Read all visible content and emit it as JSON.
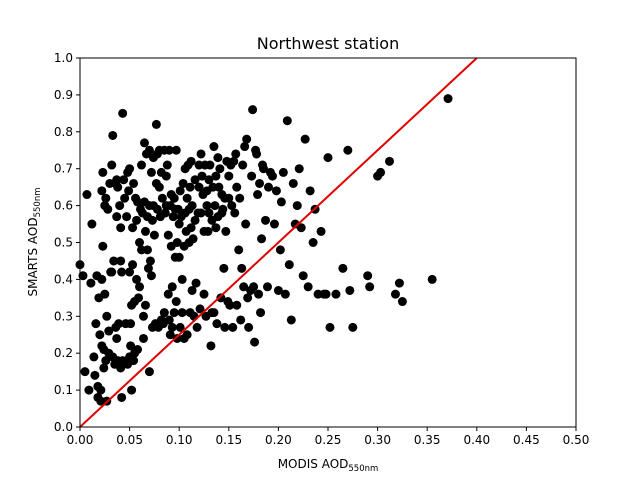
{
  "chart_data": {
    "type": "scatter",
    "title": "Northwest station",
    "xlabel": {
      "main": "MODIS AOD",
      "sub": "550nm"
    },
    "ylabel": {
      "main": "SMARTS AOD",
      "sub": "550nm"
    },
    "xlim": [
      0.0,
      0.5
    ],
    "ylim": [
      0.0,
      1.0
    ],
    "x_ticks": [
      "0.00",
      "0.05",
      "0.10",
      "0.15",
      "0.20",
      "0.25",
      "0.30",
      "0.35",
      "0.40",
      "0.45",
      "0.50"
    ],
    "y_ticks": [
      "0.0",
      "0.1",
      "0.2",
      "0.3",
      "0.4",
      "0.5",
      "0.6",
      "0.7",
      "0.8",
      "0.9",
      "1.0"
    ],
    "grid": false,
    "marker_color": "#000000",
    "reference_line": {
      "color": "#e00000",
      "slope": 2.5,
      "intercept": 0.0
    },
    "points": [
      [
        0.0,
        0.44
      ],
      [
        0.003,
        0.41
      ],
      [
        0.005,
        0.15
      ],
      [
        0.007,
        0.63
      ],
      [
        0.009,
        0.1
      ],
      [
        0.011,
        0.39
      ],
      [
        0.012,
        0.55
      ],
      [
        0.014,
        0.19
      ],
      [
        0.015,
        0.14
      ],
      [
        0.016,
        0.28
      ],
      [
        0.017,
        0.41
      ],
      [
        0.018,
        0.11
      ],
      [
        0.018,
        0.08
      ],
      [
        0.019,
        0.35
      ],
      [
        0.02,
        0.25
      ],
      [
        0.021,
        0.1
      ],
      [
        0.021,
        0.07
      ],
      [
        0.022,
        0.64
      ],
      [
        0.022,
        0.4
      ],
      [
        0.022,
        0.22
      ],
      [
        0.023,
        0.69
      ],
      [
        0.023,
        0.49
      ],
      [
        0.024,
        0.21
      ],
      [
        0.024,
        0.16
      ],
      [
        0.025,
        0.6
      ],
      [
        0.025,
        0.36
      ],
      [
        0.026,
        0.62
      ],
      [
        0.026,
        0.18
      ],
      [
        0.027,
        0.07
      ],
      [
        0.027,
        0.3
      ],
      [
        0.028,
        0.59
      ],
      [
        0.029,
        0.2
      ],
      [
        0.029,
        0.26
      ],
      [
        0.03,
        0.66
      ],
      [
        0.031,
        0.42
      ],
      [
        0.032,
        0.71
      ],
      [
        0.032,
        0.42
      ],
      [
        0.033,
        0.19
      ],
      [
        0.033,
        0.79
      ],
      [
        0.034,
        0.45
      ],
      [
        0.035,
        0.17
      ],
      [
        0.036,
        0.27
      ],
      [
        0.036,
        0.66
      ],
      [
        0.037,
        0.67
      ],
      [
        0.037,
        0.57
      ],
      [
        0.037,
        0.24
      ],
      [
        0.038,
        0.65
      ],
      [
        0.038,
        0.18
      ],
      [
        0.039,
        0.28
      ],
      [
        0.04,
        0.6
      ],
      [
        0.041,
        0.54
      ],
      [
        0.041,
        0.16
      ],
      [
        0.041,
        0.45
      ],
      [
        0.042,
        0.08
      ],
      [
        0.042,
        0.42
      ],
      [
        0.043,
        0.85
      ],
      [
        0.043,
        0.18
      ],
      [
        0.044,
        0.67
      ],
      [
        0.045,
        0.62
      ],
      [
        0.046,
        0.28
      ],
      [
        0.047,
        0.57
      ],
      [
        0.048,
        0.69
      ],
      [
        0.048,
        0.17
      ],
      [
        0.049,
        0.64
      ],
      [
        0.05,
        0.7
      ],
      [
        0.05,
        0.42
      ],
      [
        0.05,
        0.19
      ],
      [
        0.051,
        0.22
      ],
      [
        0.051,
        0.28
      ],
      [
        0.052,
        0.1
      ],
      [
        0.052,
        0.33
      ],
      [
        0.053,
        0.54
      ],
      [
        0.053,
        0.44
      ],
      [
        0.054,
        0.18
      ],
      [
        0.054,
        0.66
      ],
      [
        0.055,
        0.34
      ],
      [
        0.055,
        0.2
      ],
      [
        0.056,
        0.62
      ],
      [
        0.057,
        0.56
      ],
      [
        0.057,
        0.4
      ],
      [
        0.058,
        0.61
      ],
      [
        0.058,
        0.21
      ],
      [
        0.059,
        0.35
      ],
      [
        0.06,
        0.5
      ],
      [
        0.06,
        0.38
      ],
      [
        0.061,
        0.59
      ],
      [
        0.062,
        0.71
      ],
      [
        0.062,
        0.48
      ],
      [
        0.063,
        0.58
      ],
      [
        0.064,
        0.24
      ],
      [
        0.064,
        0.3
      ],
      [
        0.065,
        0.77
      ],
      [
        0.065,
        0.61
      ],
      [
        0.066,
        0.53
      ],
      [
        0.066,
        0.33
      ],
      [
        0.067,
        0.74
      ],
      [
        0.068,
        0.48
      ],
      [
        0.068,
        0.57
      ],
      [
        0.069,
        0.43
      ],
      [
        0.07,
        0.75
      ],
      [
        0.07,
        0.15
      ],
      [
        0.07,
        0.6
      ],
      [
        0.071,
        0.45
      ],
      [
        0.072,
        0.69
      ],
      [
        0.072,
        0.41
      ],
      [
        0.073,
        0.56
      ],
      [
        0.073,
        0.27
      ],
      [
        0.074,
        0.73
      ],
      [
        0.074,
        0.6
      ],
      [
        0.075,
        0.52
      ],
      [
        0.076,
        0.28
      ],
      [
        0.077,
        0.82
      ],
      [
        0.077,
        0.66
      ],
      [
        0.078,
        0.59
      ],
      [
        0.078,
        0.74
      ],
      [
        0.079,
        0.27
      ],
      [
        0.08,
        0.65
      ],
      [
        0.08,
        0.75
      ],
      [
        0.081,
        0.57
      ],
      [
        0.082,
        0.29
      ],
      [
        0.082,
        0.69
      ],
      [
        0.083,
        0.62
      ],
      [
        0.084,
        0.28
      ],
      [
        0.085,
        0.31
      ],
      [
        0.085,
        0.75
      ],
      [
        0.086,
        0.58
      ],
      [
        0.087,
        0.68
      ],
      [
        0.087,
        0.6
      ],
      [
        0.088,
        0.71
      ],
      [
        0.089,
        0.52
      ],
      [
        0.089,
        0.36
      ],
      [
        0.09,
        0.75
      ],
      [
        0.09,
        0.29
      ],
      [
        0.091,
        0.6
      ],
      [
        0.091,
        0.25
      ],
      [
        0.092,
        0.49
      ],
      [
        0.092,
        0.63
      ],
      [
        0.093,
        0.38
      ],
      [
        0.093,
        0.27
      ],
      [
        0.094,
        0.57
      ],
      [
        0.095,
        0.31
      ],
      [
        0.095,
        0.62
      ],
      [
        0.096,
        0.59
      ],
      [
        0.096,
        0.46
      ],
      [
        0.097,
        0.75
      ],
      [
        0.097,
        0.34
      ],
      [
        0.098,
        0.5
      ],
      [
        0.098,
        0.24
      ],
      [
        0.099,
        0.59
      ],
      [
        0.1,
        0.55
      ],
      [
        0.1,
        0.46
      ],
      [
        0.101,
        0.64
      ],
      [
        0.101,
        0.27
      ],
      [
        0.102,
        0.57
      ],
      [
        0.103,
        0.4
      ],
      [
        0.103,
        0.31
      ],
      [
        0.104,
        0.66
      ],
      [
        0.105,
        0.49
      ],
      [
        0.105,
        0.24
      ],
      [
        0.106,
        0.7
      ],
      [
        0.106,
        0.58
      ],
      [
        0.107,
        0.53
      ],
      [
        0.108,
        0.62
      ],
      [
        0.108,
        0.25
      ],
      [
        0.109,
        0.71
      ],
      [
        0.11,
        0.5
      ],
      [
        0.11,
        0.59
      ],
      [
        0.111,
        0.65
      ],
      [
        0.111,
        0.31
      ],
      [
        0.112,
        0.72
      ],
      [
        0.112,
        0.54
      ],
      [
        0.113,
        0.6
      ],
      [
        0.113,
        0.37
      ],
      [
        0.114,
        0.51
      ],
      [
        0.115,
        0.3
      ],
      [
        0.116,
        0.56
      ],
      [
        0.116,
        0.67
      ],
      [
        0.117,
        0.39
      ],
      [
        0.118,
        0.27
      ],
      [
        0.119,
        0.58
      ],
      [
        0.12,
        0.65
      ],
      [
        0.12,
        0.71
      ],
      [
        0.121,
        0.32
      ],
      [
        0.122,
        0.74
      ],
      [
        0.122,
        0.58
      ],
      [
        0.123,
        0.68
      ],
      [
        0.124,
        0.63
      ],
      [
        0.125,
        0.53
      ],
      [
        0.125,
        0.36
      ],
      [
        0.126,
        0.71
      ],
      [
        0.127,
        0.3
      ],
      [
        0.128,
        0.6
      ],
      [
        0.128,
        0.64
      ],
      [
        0.129,
        0.53
      ],
      [
        0.13,
        0.58
      ],
      [
        0.13,
        0.67
      ],
      [
        0.131,
        0.71
      ],
      [
        0.132,
        0.22
      ],
      [
        0.133,
        0.31
      ],
      [
        0.133,
        0.56
      ],
      [
        0.134,
        0.65
      ],
      [
        0.135,
        0.76
      ],
      [
        0.135,
        0.31
      ],
      [
        0.136,
        0.6
      ],
      [
        0.137,
        0.68
      ],
      [
        0.137,
        0.54
      ],
      [
        0.138,
        0.28
      ],
      [
        0.139,
        0.57
      ],
      [
        0.139,
        0.73
      ],
      [
        0.14,
        0.65
      ],
      [
        0.141,
        0.7
      ],
      [
        0.142,
        0.35
      ],
      [
        0.143,
        0.63
      ],
      [
        0.143,
        0.58
      ],
      [
        0.144,
        0.59
      ],
      [
        0.145,
        0.43
      ],
      [
        0.146,
        0.62
      ],
      [
        0.146,
        0.27
      ],
      [
        0.147,
        0.53
      ],
      [
        0.148,
        0.72
      ],
      [
        0.149,
        0.34
      ],
      [
        0.15,
        0.68
      ],
      [
        0.15,
        0.62
      ],
      [
        0.151,
        0.33
      ],
      [
        0.152,
        0.71
      ],
      [
        0.153,
        0.6
      ],
      [
        0.154,
        0.27
      ],
      [
        0.155,
        0.72
      ],
      [
        0.156,
        0.58
      ],
      [
        0.157,
        0.74
      ],
      [
        0.158,
        0.33
      ],
      [
        0.158,
        0.65
      ],
      [
        0.16,
        0.48
      ],
      [
        0.161,
        0.62
      ],
      [
        0.162,
        0.29
      ],
      [
        0.163,
        0.43
      ],
      [
        0.164,
        0.71
      ],
      [
        0.165,
        0.38
      ],
      [
        0.166,
        0.76
      ],
      [
        0.167,
        0.55
      ],
      [
        0.168,
        0.78
      ],
      [
        0.169,
        0.35
      ],
      [
        0.17,
        0.27
      ],
      [
        0.172,
        0.37
      ],
      [
        0.173,
        0.68
      ],
      [
        0.174,
        0.86
      ],
      [
        0.175,
        0.38
      ],
      [
        0.176,
        0.23
      ],
      [
        0.177,
        0.75
      ],
      [
        0.178,
        0.74
      ],
      [
        0.179,
        0.63
      ],
      [
        0.18,
        0.36
      ],
      [
        0.181,
        0.66
      ],
      [
        0.182,
        0.31
      ],
      [
        0.183,
        0.51
      ],
      [
        0.184,
        0.71
      ],
      [
        0.185,
        0.7
      ],
      [
        0.187,
        0.56
      ],
      [
        0.189,
        0.38
      ],
      [
        0.19,
        0.65
      ],
      [
        0.192,
        0.69
      ],
      [
        0.194,
        0.68
      ],
      [
        0.196,
        0.55
      ],
      [
        0.198,
        0.64
      ],
      [
        0.2,
        0.37
      ],
      [
        0.202,
        0.48
      ],
      [
        0.203,
        0.61
      ],
      [
        0.205,
        0.69
      ],
      [
        0.207,
        0.36
      ],
      [
        0.209,
        0.83
      ],
      [
        0.211,
        0.44
      ],
      [
        0.213,
        0.29
      ],
      [
        0.215,
        0.66
      ],
      [
        0.217,
        0.55
      ],
      [
        0.219,
        0.6
      ],
      [
        0.221,
        0.7
      ],
      [
        0.223,
        0.54
      ],
      [
        0.225,
        0.41
      ],
      [
        0.227,
        0.78
      ],
      [
        0.23,
        0.38
      ],
      [
        0.232,
        0.64
      ],
      [
        0.235,
        0.5
      ],
      [
        0.237,
        0.59
      ],
      [
        0.24,
        0.36
      ],
      [
        0.243,
        0.53
      ],
      [
        0.246,
        0.36
      ],
      [
        0.248,
        0.36
      ],
      [
        0.25,
        0.73
      ],
      [
        0.252,
        0.27
      ],
      [
        0.258,
        0.36
      ],
      [
        0.265,
        0.43
      ],
      [
        0.27,
        0.75
      ],
      [
        0.272,
        0.37
      ],
      [
        0.275,
        0.27
      ],
      [
        0.29,
        0.41
      ],
      [
        0.292,
        0.38
      ],
      [
        0.3,
        0.68
      ],
      [
        0.303,
        0.69
      ],
      [
        0.312,
        0.72
      ],
      [
        0.318,
        0.36
      ],
      [
        0.322,
        0.39
      ],
      [
        0.325,
        0.34
      ],
      [
        0.355,
        0.4
      ],
      [
        0.371,
        0.89
      ]
    ]
  }
}
